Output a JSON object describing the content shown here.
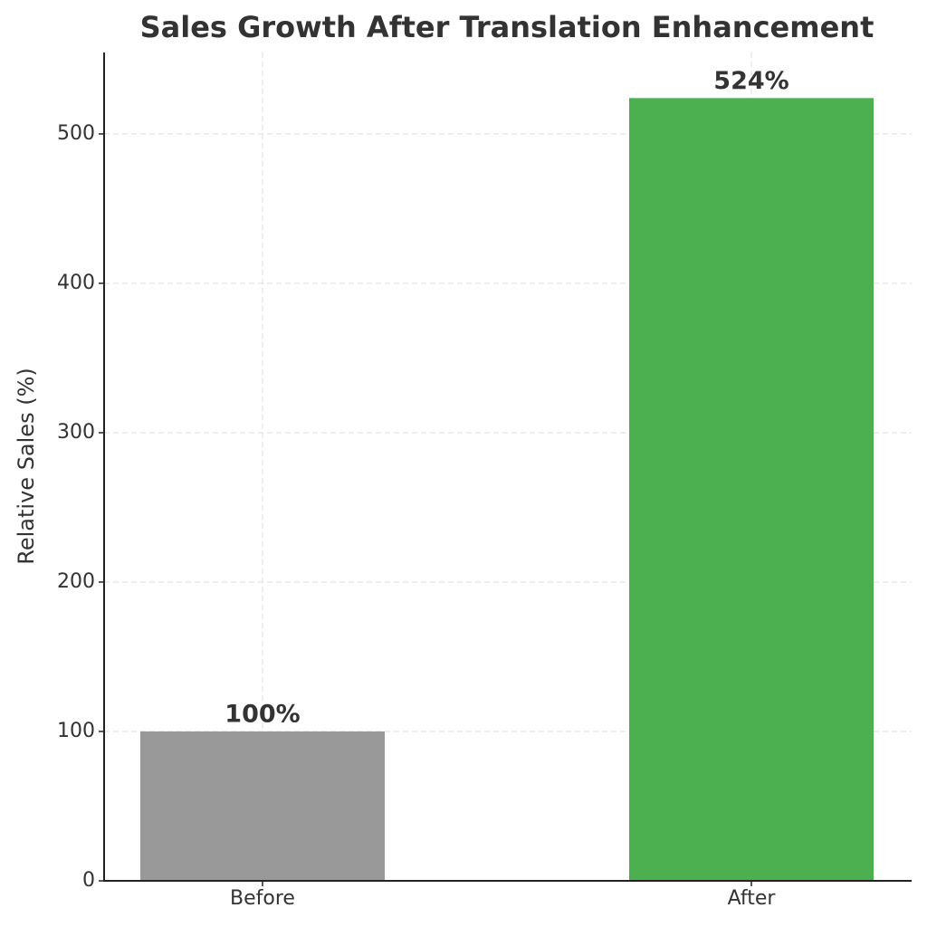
{
  "chart_data": {
    "type": "bar",
    "title": "Sales Growth After Translation Enhancement",
    "y_label": "Relative Sales (%)",
    "categories": [
      "Before",
      "After"
    ],
    "values": [
      100,
      524
    ],
    "value_labels": [
      "100%",
      "524%"
    ],
    "colors": [
      "#999999",
      "#4caf50"
    ],
    "ylim": [
      0,
      554.5
    ],
    "yticks": [
      0,
      100,
      200,
      300,
      400,
      500
    ],
    "grid": true
  }
}
